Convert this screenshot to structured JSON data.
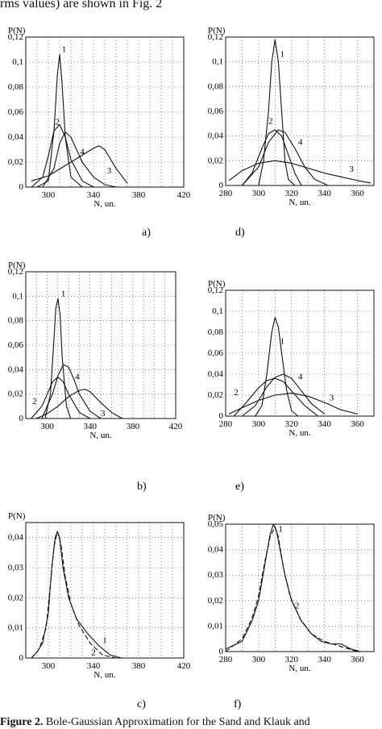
{
  "intro_text": "rms values) are shown in Fig. 2",
  "caption": {
    "prefix": "Figure 2.",
    "text": " Bole-Gaussian Approximation for the Sand and Klauk and"
  },
  "chart_data": [
    {
      "id": "a",
      "label": "a)",
      "type": "line",
      "xlabel": "N, un.",
      "ylabel": "P(N)",
      "xlim": [
        280,
        420
      ],
      "ylim": [
        0,
        0.12
      ],
      "xticks": [
        300,
        340,
        380,
        420
      ],
      "yticks": [
        0,
        0.02,
        0.04,
        0.06,
        0.08,
        0.1,
        0.12
      ],
      "ytick_labels": [
        "0",
        "0,02",
        "0,04",
        "0,06",
        "0,08",
        "0,1",
        "0,12"
      ],
      "grid": true,
      "series": [
        {
          "name": "1",
          "x": [
            290,
            300,
            305,
            308,
            310,
            312,
            315,
            320,
            330
          ],
          "y": [
            0,
            0.005,
            0.045,
            0.09,
            0.106,
            0.085,
            0.04,
            0.008,
            0
          ]
        },
        {
          "name": "2",
          "x": [
            285,
            295,
            300,
            305,
            310,
            315,
            320,
            330,
            340
          ],
          "y": [
            0,
            0.008,
            0.025,
            0.045,
            0.05,
            0.04,
            0.022,
            0.005,
            0
          ]
        },
        {
          "name": "3",
          "x": [
            285,
            300,
            320,
            340,
            345,
            350,
            360,
            370
          ],
          "y": [
            0.005,
            0.009,
            0.02,
            0.031,
            0.033,
            0.03,
            0.015,
            0.003
          ]
        },
        {
          "name": "4",
          "x": [
            295,
            305,
            310,
            315,
            320,
            330,
            340,
            350,
            360
          ],
          "y": [
            0,
            0.015,
            0.035,
            0.044,
            0.04,
            0.02,
            0.008,
            0.002,
            0
          ]
        }
      ],
      "series_label_positions": [
        {
          "name": "1",
          "x": 312,
          "y": 0.108
        },
        {
          "name": "2",
          "x": 306,
          "y": 0.05
        },
        {
          "name": "3",
          "x": 352,
          "y": 0.011
        },
        {
          "name": "4",
          "x": 328,
          "y": 0.026
        }
      ]
    },
    {
      "id": "d",
      "label": "d)",
      "type": "line",
      "xlabel": "N, un.",
      "ylabel": "P(N)",
      "xlim": [
        280,
        370
      ],
      "ylim": [
        0,
        0.12
      ],
      "xticks": [
        280,
        300,
        320,
        340,
        360
      ],
      "yticks": [
        0,
        0.02,
        0.04,
        0.06,
        0.08,
        0.1,
        0.12
      ],
      "ytick_labels": [
        "0",
        "0,02",
        "0,04",
        "0,06",
        "0,08",
        "0,1",
        "0,12"
      ],
      "grid": true,
      "series": [
        {
          "name": "1",
          "x": [
            300,
            303,
            306,
            308,
            310,
            312,
            314,
            316,
            318,
            322
          ],
          "y": [
            0,
            0.02,
            0.06,
            0.1,
            0.118,
            0.1,
            0.06,
            0.02,
            0.005,
            0
          ]
        },
        {
          "name": "2",
          "x": [
            290,
            296,
            302,
            306,
            310,
            314,
            318,
            322,
            326
          ],
          "y": [
            0,
            0.01,
            0.03,
            0.042,
            0.045,
            0.04,
            0.025,
            0.01,
            0
          ]
        },
        {
          "name": "3",
          "x": [
            282,
            290,
            300,
            310,
            320,
            330,
            340,
            350,
            360,
            368
          ],
          "y": [
            0.004,
            0.012,
            0.018,
            0.02,
            0.018,
            0.014,
            0.01,
            0.007,
            0.004,
            0.002
          ]
        },
        {
          "name": "4",
          "x": [
            290,
            300,
            306,
            312,
            316,
            322,
            328,
            334,
            342
          ],
          "y": [
            0,
            0.015,
            0.035,
            0.045,
            0.043,
            0.03,
            0.015,
            0.005,
            0
          ]
        }
      ],
      "series_label_positions": [
        {
          "name": "1",
          "x": 313,
          "y": 0.104
        },
        {
          "name": "2",
          "x": 306,
          "y": 0.05
        },
        {
          "name": "3",
          "x": 355,
          "y": 0.011
        },
        {
          "name": "4",
          "x": 324,
          "y": 0.033
        }
      ]
    },
    {
      "id": "b",
      "label": "b)",
      "type": "line",
      "xlabel": "N, un.",
      "ylabel": "P(N)",
      "xlim": [
        280,
        420
      ],
      "ylim": [
        0,
        0.12
      ],
      "xticks": [
        300,
        340,
        380,
        420
      ],
      "yticks": [
        0,
        0.02,
        0.04,
        0.06,
        0.08,
        0.1,
        0.12
      ],
      "ytick_labels": [
        "0",
        "0,02",
        "0,04",
        "0,06",
        "0,08",
        "0,1",
        "0,12"
      ],
      "grid": true,
      "series": [
        {
          "name": "1",
          "x": [
            298,
            303,
            306,
            308,
            310,
            312,
            314,
            318,
            322
          ],
          "y": [
            0,
            0.02,
            0.06,
            0.09,
            0.098,
            0.085,
            0.05,
            0.01,
            0
          ]
        },
        {
          "name": "2",
          "x": [
            285,
            295,
            300,
            305,
            310,
            315,
            320,
            330,
            340
          ],
          "y": [
            0,
            0.01,
            0.02,
            0.03,
            0.034,
            0.03,
            0.02,
            0.005,
            0
          ]
        },
        {
          "name": "3",
          "x": [
            290,
            300,
            310,
            320,
            330,
            335,
            340,
            350,
            360,
            370
          ],
          "y": [
            0,
            0.004,
            0.01,
            0.018,
            0.023,
            0.024,
            0.022,
            0.013,
            0.005,
            0
          ]
        },
        {
          "name": "4",
          "x": [
            295,
            305,
            310,
            315,
            320,
            325,
            330,
            340,
            350
          ],
          "y": [
            0,
            0.02,
            0.035,
            0.044,
            0.042,
            0.032,
            0.02,
            0.006,
            0
          ]
        }
      ],
      "series_label_positions": [
        {
          "name": "1",
          "x": 313,
          "y": 0.1
        },
        {
          "name": "2",
          "x": 286,
          "y": 0.012
        },
        {
          "name": "3",
          "x": 350,
          "y": 0.002
        },
        {
          "name": "4",
          "x": 326,
          "y": 0.032
        }
      ]
    },
    {
      "id": "e",
      "label": "e)",
      "type": "line",
      "xlabel": "N, un.",
      "ylabel": "P(N)",
      "xlim": [
        280,
        370
      ],
      "ylim": [
        0,
        0.12
      ],
      "xticks": [
        280,
        300,
        320,
        340,
        360
      ],
      "yticks": [
        0,
        0.02,
        0.04,
        0.06,
        0.08,
        0.1,
        0.12
      ],
      "ytick_labels": [
        "0",
        "0,02",
        "0,04",
        "0,06",
        "0,08",
        "0,1",
        "0,12"
      ],
      "grid": true,
      "series": [
        {
          "name": "1",
          "x": [
            298,
            302,
            305,
            308,
            310,
            312,
            314,
            317,
            320,
            324
          ],
          "y": [
            0,
            0.01,
            0.04,
            0.08,
            0.094,
            0.085,
            0.06,
            0.025,
            0.005,
            0
          ]
        },
        {
          "name": "2",
          "x": [
            285,
            292,
            300,
            305,
            310,
            315,
            320,
            328,
            336
          ],
          "y": [
            0,
            0.012,
            0.027,
            0.034,
            0.036,
            0.033,
            0.024,
            0.01,
            0
          ]
        },
        {
          "name": "3",
          "x": [
            282,
            290,
            300,
            310,
            320,
            330,
            340,
            350,
            360
          ],
          "y": [
            0.002,
            0.008,
            0.015,
            0.02,
            0.022,
            0.019,
            0.013,
            0.006,
            0.002
          ]
        },
        {
          "name": "4",
          "x": [
            290,
            298,
            305,
            310,
            315,
            320,
            325,
            332,
            340
          ],
          "y": [
            0,
            0.01,
            0.028,
            0.037,
            0.04,
            0.036,
            0.026,
            0.012,
            0.002
          ]
        }
      ],
      "series_label_positions": [
        {
          "name": "1",
          "x": 313,
          "y": 0.069
        },
        {
          "name": "2",
          "x": 285,
          "y": 0.02
        },
        {
          "name": "3",
          "x": 343,
          "y": 0.015
        },
        {
          "name": "4",
          "x": 324,
          "y": 0.035
        }
      ]
    },
    {
      "id": "c",
      "label": "c)",
      "type": "line",
      "xlabel": "N, un.",
      "ylabel": "P(N)",
      "xlim": [
        280,
        420
      ],
      "ylim": [
        0,
        0.045
      ],
      "xticks": [
        300,
        340,
        380,
        420
      ],
      "yticks": [
        0,
        0.01,
        0.02,
        0.03,
        0.04
      ],
      "ytick_labels": [
        "0",
        "0,01",
        "0,02",
        "0,03",
        "0,04"
      ],
      "grid": true,
      "series": [
        {
          "name": "1",
          "x": [
            285,
            290,
            295,
            300,
            303,
            306,
            308,
            310,
            313,
            318,
            325,
            335,
            345,
            355,
            365
          ],
          "y": [
            0,
            0.002,
            0.005,
            0.015,
            0.03,
            0.04,
            0.042,
            0.04,
            0.03,
            0.02,
            0.013,
            0.008,
            0.004,
            0.001,
            0
          ]
        },
        {
          "name": "2",
          "x": [
            285,
            292,
            298,
            302,
            305,
            308,
            311,
            315,
            320,
            327,
            337,
            348,
            360
          ],
          "y": [
            0,
            0.003,
            0.01,
            0.025,
            0.037,
            0.042,
            0.038,
            0.027,
            0.018,
            0.011,
            0.005,
            0.001,
            0
          ],
          "dash": true
        }
      ],
      "series_label_positions": [
        {
          "name": "1",
          "x": 348,
          "y": 0.005
        },
        {
          "name": "2",
          "x": 338,
          "y": 0.001
        }
      ]
    },
    {
      "id": "f",
      "label": "f)",
      "type": "line",
      "xlabel": "N, un.",
      "ylabel": "P(N)",
      "xlim": [
        280,
        370
      ],
      "ylim": [
        0,
        0.05
      ],
      "xticks": [
        280,
        300,
        320,
        340,
        360
      ],
      "yticks": [
        0,
        0.01,
        0.02,
        0.03,
        0.04,
        0.05
      ],
      "ytick_labels": [
        "0",
        "0,01",
        "0,02",
        "0,03",
        "0,04",
        "0,05"
      ],
      "grid": true,
      "series": [
        {
          "name": "1",
          "x": [
            280,
            290,
            296,
            300,
            304,
            307,
            309,
            311,
            313,
            316,
            320,
            326,
            332,
            338,
            344,
            350,
            356,
            362
          ],
          "y": [
            0.001,
            0.004,
            0.012,
            0.02,
            0.035,
            0.046,
            0.05,
            0.047,
            0.04,
            0.03,
            0.02,
            0.012,
            0.007,
            0.004,
            0.003,
            0.003,
            0.001,
            0
          ]
        },
        {
          "name": "2",
          "x": [
            280,
            290,
            296,
            300,
            304,
            307,
            310,
            312,
            315,
            319,
            325,
            332,
            340,
            350,
            360
          ],
          "y": [
            0,
            0.005,
            0.013,
            0.022,
            0.036,
            0.045,
            0.049,
            0.045,
            0.033,
            0.022,
            0.013,
            0.007,
            0.004,
            0.002,
            0
          ],
          "dash": true
        }
      ],
      "series_label_positions": [
        {
          "name": "1",
          "x": 312,
          "y": 0.047
        },
        {
          "name": "2",
          "x": 322,
          "y": 0.017
        }
      ]
    }
  ]
}
